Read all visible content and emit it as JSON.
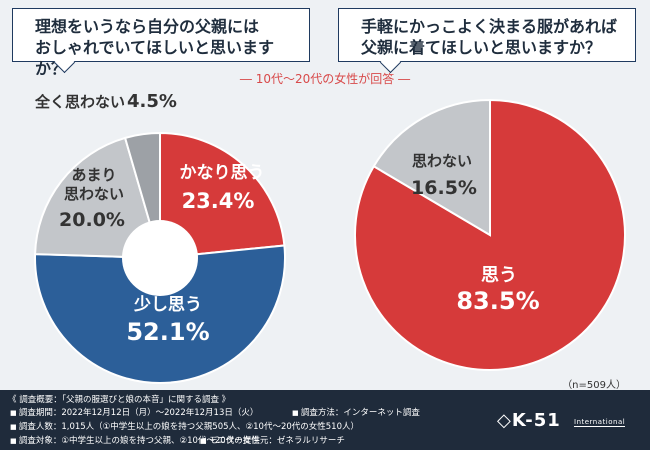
{
  "questions": {
    "q1": "理想をいうなら自分の父親には\nおしゃれでいてほしいと思いますか？",
    "q2": "手軽にかっこよく決まる服があれば\n父親に着てほしいと思いますか？"
  },
  "respondent_note": "― 10代～20代の女性が回答 ―",
  "sample_size": "（n=509人）",
  "chart_data": [
    {
      "type": "pie",
      "style": "donut",
      "categories": [
        "かなり思う",
        "少し思う",
        "あまり思わない",
        "全く思わない"
      ],
      "values": [
        23.4,
        52.1,
        20.0,
        4.5
      ],
      "labels": [
        "かなり思う",
        "少し思う",
        "あまり\n思わない",
        "全く思わない"
      ],
      "value_labels": [
        "23.4%",
        "52.1%",
        "20.0%",
        "4.5%"
      ],
      "colors": [
        "#d63a3a",
        "#2c5f99",
        "#c3c6ca",
        "#9da1a6"
      ]
    },
    {
      "type": "pie",
      "categories": [
        "思う",
        "思わない"
      ],
      "values": [
        83.5,
        16.5
      ],
      "labels": [
        "思う",
        "思わない"
      ],
      "value_labels": [
        "83.5%",
        "16.5%"
      ],
      "colors": [
        "#d63a3a",
        "#c3c6ca"
      ]
    }
  ],
  "footer": {
    "title": "《 調査概要：「父親の服選びと娘の本音」に関する調査 》",
    "period": "調査期間：2022年12月12日（月）～2022年12月13日（火）",
    "method": "調査方法：インターネット調査",
    "count": "調査人数：1,015人（①中学生以上の娘を持つ父親505人、②10代～20代の女性510人）",
    "target": "調査対象：①中学生以上の娘を持つ父親、②10代～20代の女性",
    "provider": "モニター提供元：ゼネラルリサーチ",
    "logo": "◇K-51",
    "logo_sub": "International"
  }
}
